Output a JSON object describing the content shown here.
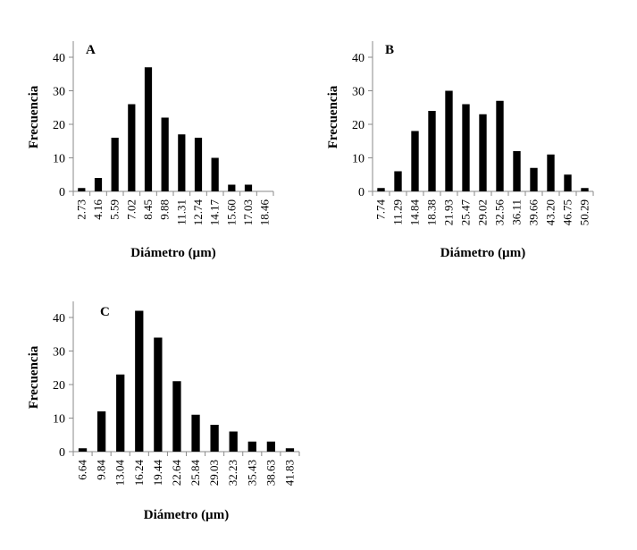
{
  "chart_data": [
    {
      "type": "bar",
      "panel_label": "A",
      "xlabel": "Diámetro (µm)",
      "ylabel": "Frecuencia",
      "ylim": [
        0,
        40
      ],
      "yticks": [
        "0",
        "10",
        "20",
        "30",
        "40"
      ],
      "grid": false,
      "legend": "none",
      "bar_color": "#000000",
      "categories": [
        "2.73",
        "4.16",
        "5.59",
        "7.02",
        "8.45",
        "9.88",
        "11.31",
        "12.74",
        "14.17",
        "15.60",
        "17.03",
        "18.46"
      ],
      "values": [
        1,
        4,
        16,
        26,
        37,
        22,
        17,
        16,
        10,
        2,
        2,
        0
      ]
    },
    {
      "type": "bar",
      "panel_label": "B",
      "xlabel": "Diámetro (µm)",
      "ylabel": "Frecuencia",
      "ylim": [
        0,
        40
      ],
      "yticks": [
        "0",
        "10",
        "20",
        "30",
        "40"
      ],
      "grid": false,
      "legend": "none",
      "bar_color": "#000000",
      "categories": [
        "7.74",
        "11.29",
        "14.84",
        "18.38",
        "21.93",
        "25.47",
        "29.02",
        "32.56",
        "36.11",
        "39.66",
        "43.20",
        "46.75",
        "50.29"
      ],
      "values": [
        1,
        6,
        18,
        24,
        30,
        26,
        23,
        27,
        12,
        7,
        11,
        5,
        1
      ]
    },
    {
      "type": "bar",
      "panel_label": "C",
      "xlabel": "Diámetro (µm)",
      "ylabel": "Frecuencia",
      "ylim": [
        0,
        40
      ],
      "yticks": [
        "0",
        "10",
        "20",
        "30",
        "40"
      ],
      "grid": false,
      "legend": "none",
      "bar_color": "#000000",
      "categories": [
        "6.64",
        "9.84",
        "13.04",
        "16.24",
        "19.44",
        "22.64",
        "25.84",
        "29.03",
        "32.23",
        "35.43",
        "38.63",
        "41.83"
      ],
      "values": [
        1,
        12,
        23,
        42,
        34,
        21,
        11,
        8,
        6,
        3,
        3,
        1
      ]
    }
  ]
}
